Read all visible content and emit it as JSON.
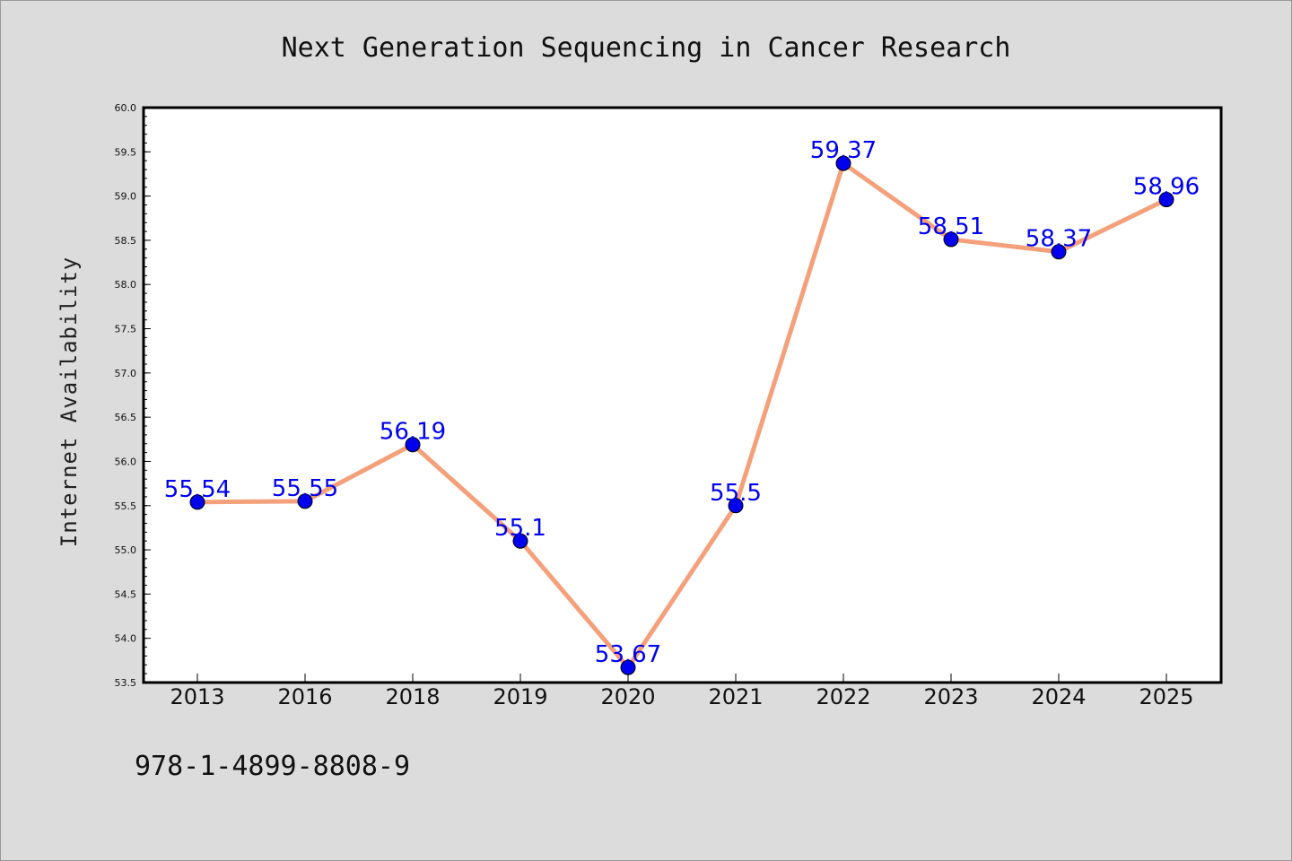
{
  "chart_data": {
    "type": "line",
    "title": "Next Generation Sequencing in Cancer Research",
    "ylabel": "Internet Availability",
    "xlabel": "",
    "categories": [
      "2013",
      "2016",
      "2018",
      "2019",
      "2020",
      "2021",
      "2022",
      "2023",
      "2024",
      "2025"
    ],
    "values": [
      55.54,
      55.55,
      56.19,
      55.1,
      53.67,
      55.5,
      59.37,
      58.51,
      58.37,
      58.96
    ],
    "data_labels": [
      "55.54",
      "55.55",
      "56.19",
      "55.1",
      "53.67",
      "55.5",
      "59.37",
      "58.51",
      "58.37",
      "58.96"
    ],
    "ylim": [
      53.5,
      60.0
    ],
    "yticks": [
      "53.5",
      "54.0",
      "54.5",
      "55.0",
      "55.5",
      "56.0",
      "56.5",
      "57.0",
      "57.5",
      "58.0",
      "58.5",
      "59.0",
      "59.5",
      "60.0"
    ],
    "grid": false,
    "line_color": "#f4a07a",
    "marker_color": "#0000ee",
    "label_color": "#0000ee"
  },
  "footer": {
    "isbn": "978-1-4899-8808-9"
  }
}
